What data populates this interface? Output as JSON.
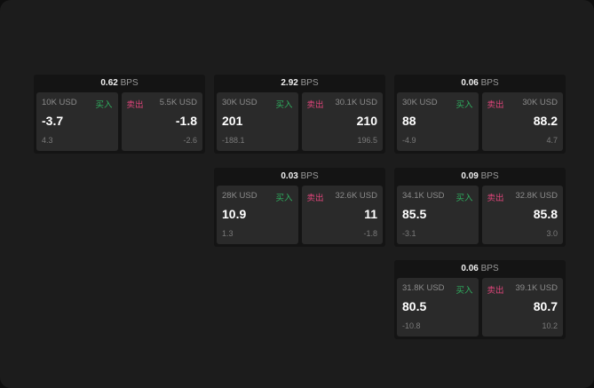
{
  "bps_unit": "BPS",
  "buy_label": "买入",
  "sell_label": "卖出",
  "cards": [
    {
      "bps": "0.62",
      "buy": {
        "size": "10K USD",
        "price": "-3.7",
        "change": "4.3"
      },
      "sell": {
        "size": "5.5K USD",
        "price": "-1.8",
        "change": "-2.6"
      }
    },
    {
      "bps": "2.92",
      "buy": {
        "size": "30K USD",
        "price": "201",
        "change": "-188.1"
      },
      "sell": {
        "size": "30.1K USD",
        "price": "210",
        "change": "196.5"
      }
    },
    {
      "bps": "0.06",
      "buy": {
        "size": "30K USD",
        "price": "88",
        "change": "-4.9"
      },
      "sell": {
        "size": "30K USD",
        "price": "88.2",
        "change": "4.7"
      }
    },
    {
      "bps": "0.03",
      "buy": {
        "size": "28K USD",
        "price": "10.9",
        "change": "1.3"
      },
      "sell": {
        "size": "32.6K USD",
        "price": "11",
        "change": "-1.8"
      }
    },
    {
      "bps": "0.09",
      "buy": {
        "size": "34.1K USD",
        "price": "85.5",
        "change": "-3.1"
      },
      "sell": {
        "size": "32.8K USD",
        "price": "85.8",
        "change": "3.0"
      }
    },
    {
      "bps": "0.06",
      "buy": {
        "size": "31.8K USD",
        "price": "80.5",
        "change": "-10.8"
      },
      "sell": {
        "size": "39.1K USD",
        "price": "80.7",
        "change": "10.2"
      }
    }
  ]
}
